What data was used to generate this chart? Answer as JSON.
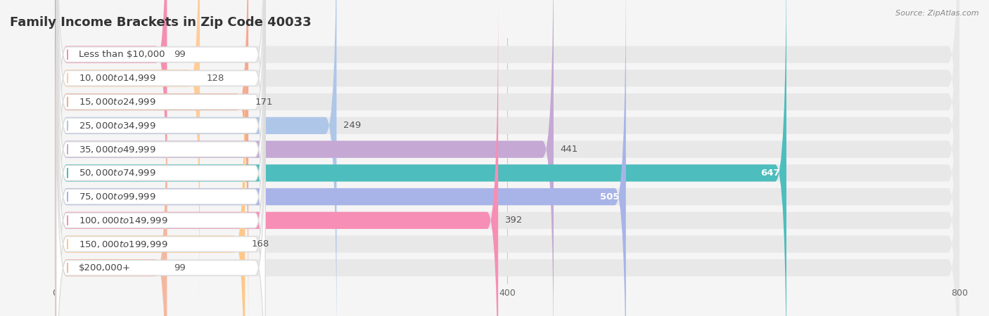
{
  "title": "Family Income Brackets in Zip Code 40033",
  "source": "Source: ZipAtlas.com",
  "categories": [
    "Less than $10,000",
    "$10,000 to $14,999",
    "$15,000 to $24,999",
    "$25,000 to $34,999",
    "$35,000 to $49,999",
    "$50,000 to $74,999",
    "$75,000 to $99,999",
    "$100,000 to $149,999",
    "$150,000 to $199,999",
    "$200,000+"
  ],
  "values": [
    99,
    128,
    171,
    249,
    441,
    647,
    505,
    392,
    168,
    99
  ],
  "bar_colors": [
    "#f48fb1",
    "#ffcc99",
    "#f4a990",
    "#aec6e8",
    "#c5a8d4",
    "#4dbdbd",
    "#a8b4e8",
    "#f78eb6",
    "#ffc888",
    "#f4b8a0"
  ],
  "value_inside": [
    false,
    false,
    false,
    false,
    false,
    true,
    true,
    false,
    false,
    false
  ],
  "bg_color": "#f5f5f5",
  "bar_bg_color": "#e8e8e8",
  "xlim_min": -40,
  "xlim_max": 800,
  "xticks": [
    0,
    400,
    800
  ],
  "title_fontsize": 13,
  "label_fontsize": 9.5,
  "value_fontsize": 9.5
}
